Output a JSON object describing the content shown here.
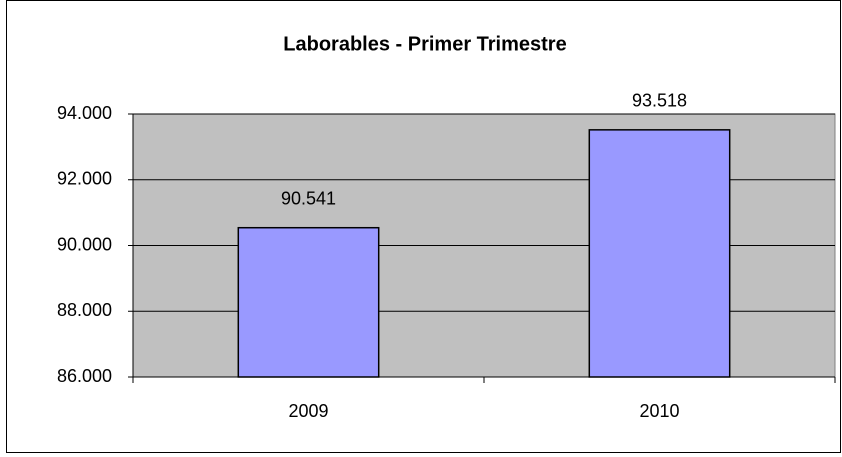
{
  "chart_data": {
    "type": "bar",
    "title": "Laborables - Primer Trimestre",
    "categories": [
      "2009",
      "2010"
    ],
    "values": [
      90541,
      93518
    ],
    "value_labels": [
      "90.541",
      "93.518"
    ],
    "color": "#9999ff",
    "ylim": [
      86000,
      94000
    ],
    "yticks": [
      {
        "value": 86000,
        "label": "86.000"
      },
      {
        "value": 88000,
        "label": "88.000"
      },
      {
        "value": 90000,
        "label": "90.000"
      },
      {
        "value": 92000,
        "label": "92.000"
      },
      {
        "value": 94000,
        "label": "94.000"
      }
    ],
    "grid": true
  }
}
